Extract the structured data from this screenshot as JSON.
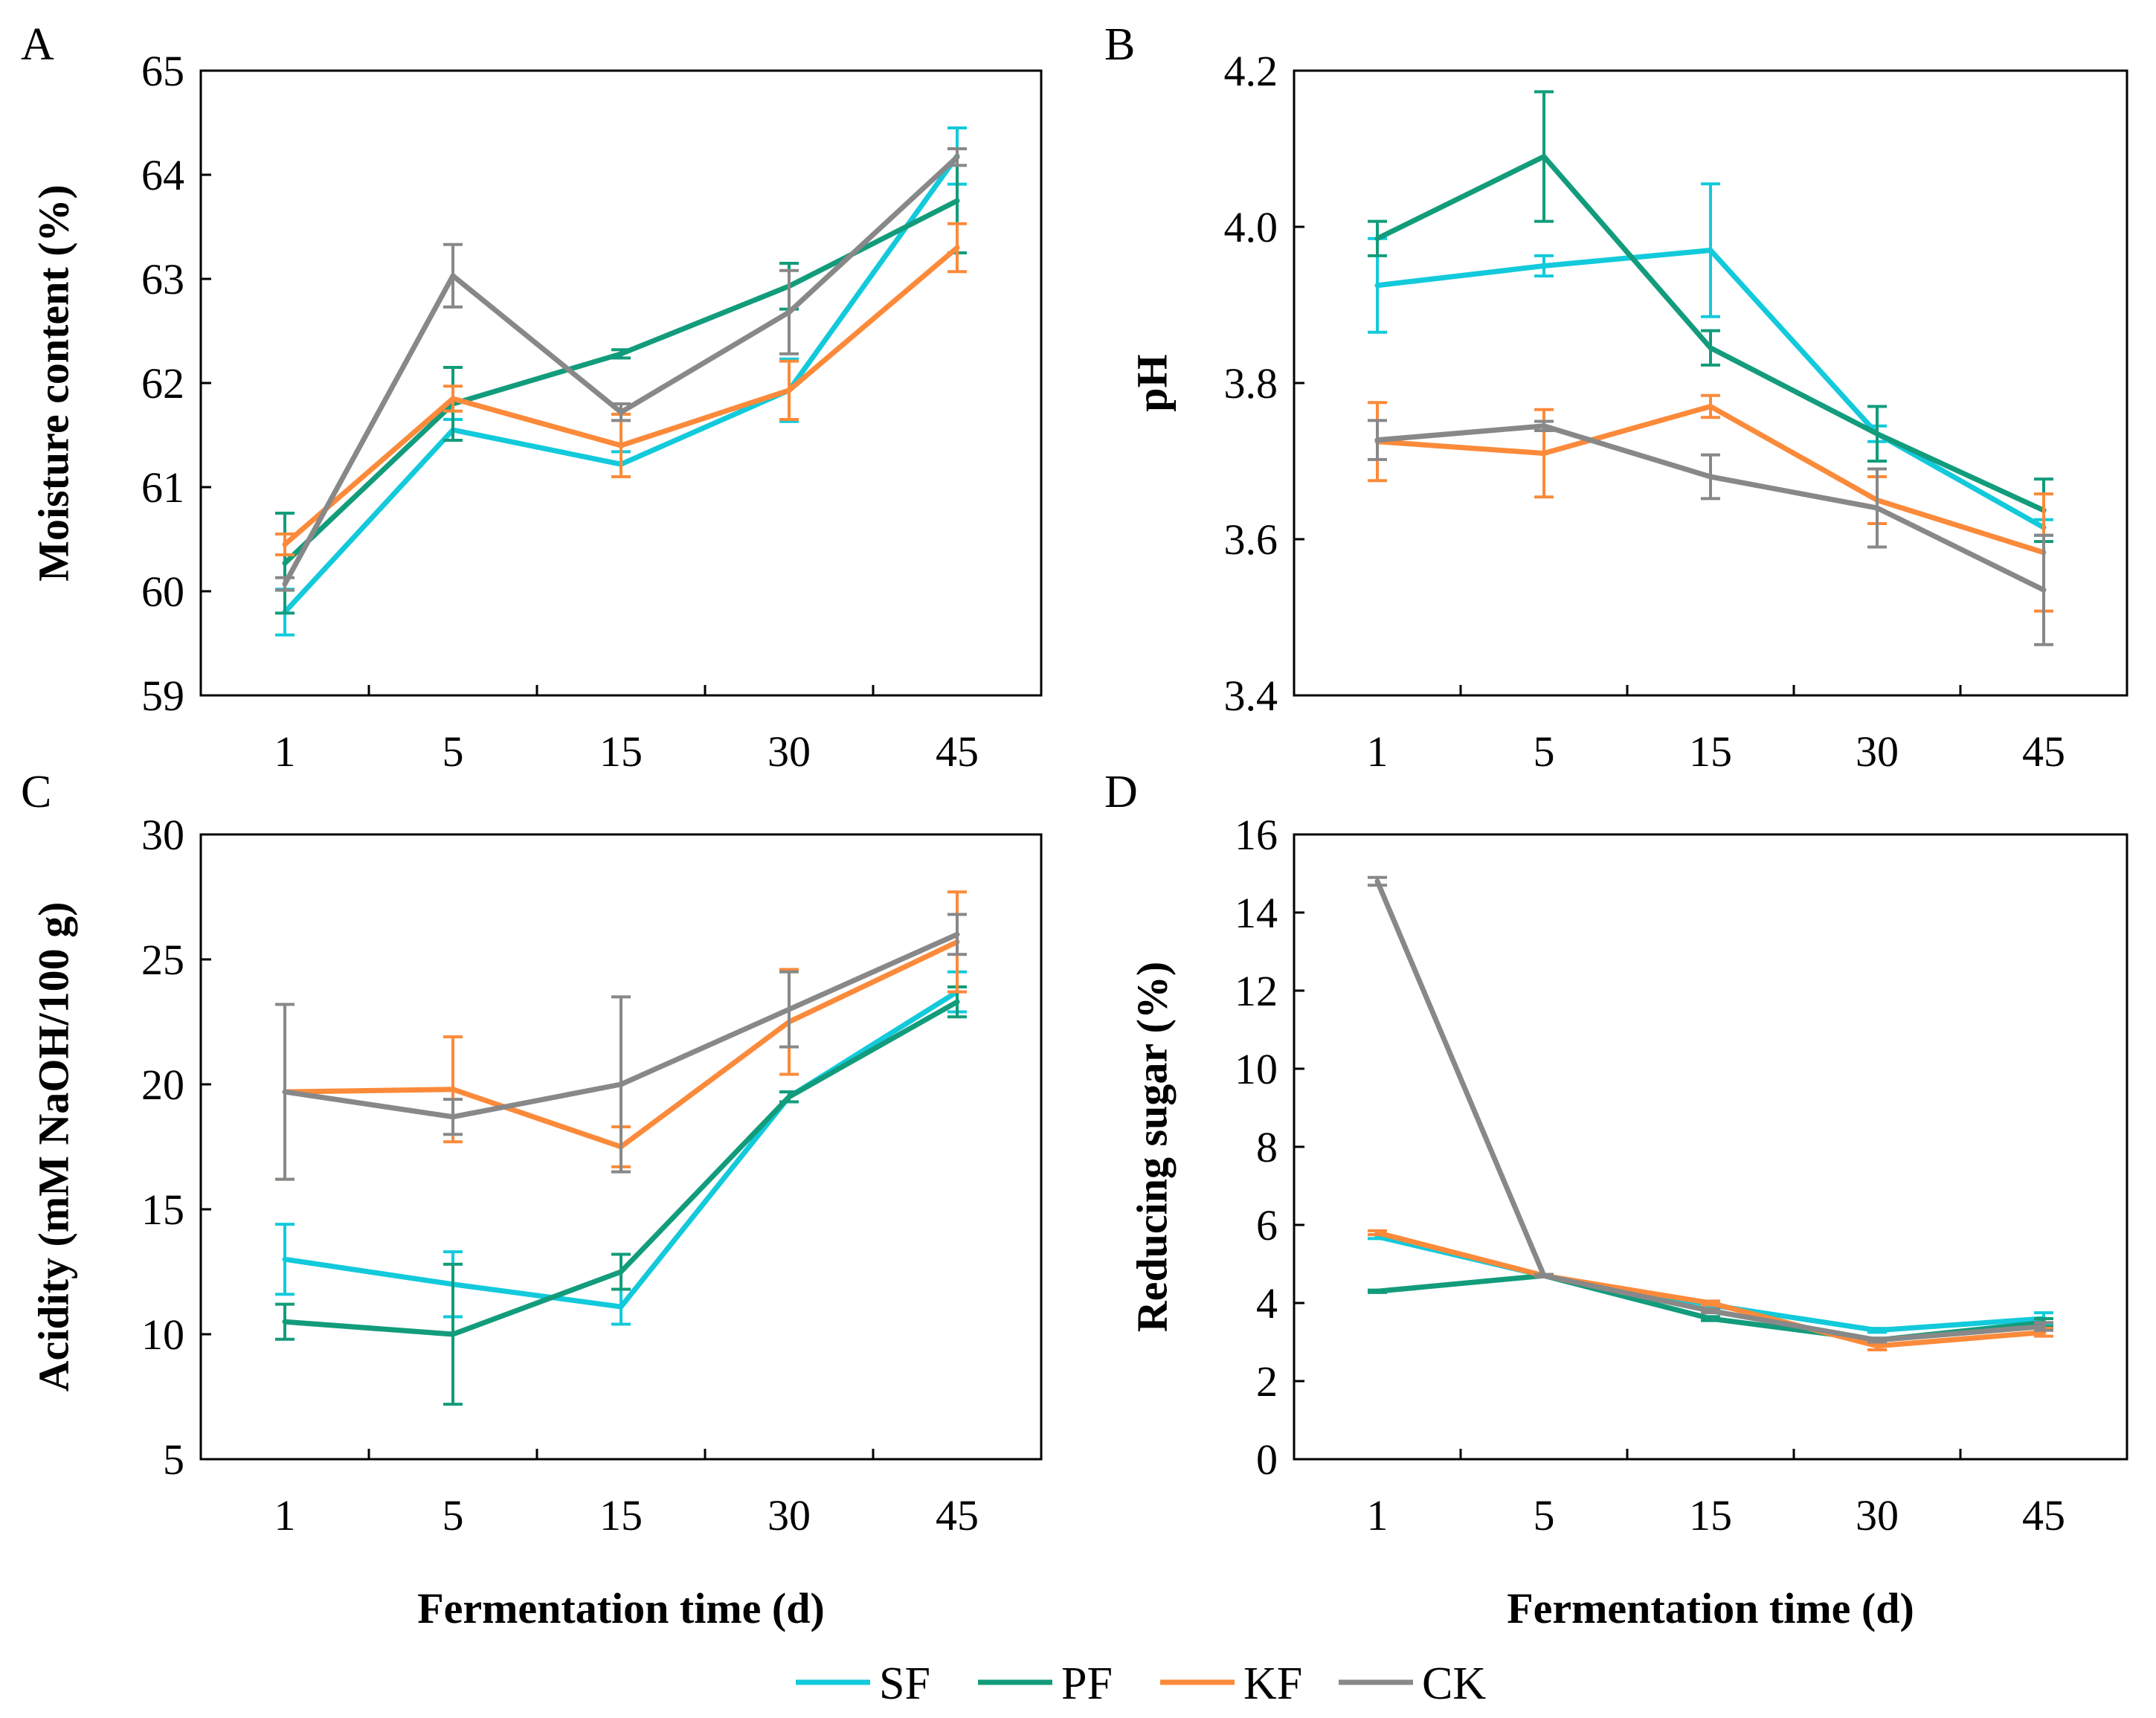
{
  "figure": {
    "x_title": "Fermentation time (d)",
    "series_colors": {
      "SF": "#12CADB",
      "PF": "#129C7B",
      "KF": "#FB8A3A",
      "CK": "#888888"
    }
  },
  "legend": {
    "items": [
      {
        "name": "SF",
        "color": "#12CADB"
      },
      {
        "name": "PF",
        "color": "#129C7B"
      },
      {
        "name": "KF",
        "color": "#FB8A3A"
      },
      {
        "name": "CK",
        "color": "#888888"
      }
    ]
  },
  "chart_data": [
    {
      "panel": "A",
      "type": "line",
      "ylabel": "Moisture content (%)",
      "xlabel": "",
      "categories": [
        "1",
        "5",
        "15",
        "30",
        "45"
      ],
      "ylim": [
        59,
        65
      ],
      "yticks": [
        59,
        60,
        61,
        62,
        63,
        64,
        65
      ],
      "ytick_labels": [
        "59",
        "60",
        "61",
        "62",
        "63",
        "64",
        "65"
      ],
      "series": [
        {
          "name": "SF",
          "values": [
            59.8,
            61.55,
            61.22,
            61.93,
            64.18
          ],
          "errors": [
            0.22,
            0.1,
            0.12,
            0.3,
            0.27
          ]
        },
        {
          "name": "PF",
          "values": [
            60.27,
            61.8,
            62.28,
            62.93,
            63.75
          ],
          "errors": [
            0.48,
            0.35,
            0.04,
            0.22,
            0.5
          ]
        },
        {
          "name": "KF",
          "values": [
            60.45,
            61.85,
            61.4,
            61.93,
            63.3
          ],
          "errors": [
            0.1,
            0.12,
            0.3,
            0.28,
            0.23
          ]
        },
        {
          "name": "CK",
          "values": [
            60.07,
            63.03,
            61.72,
            62.68,
            64.17
          ],
          "errors": [
            0.06,
            0.3,
            0.08,
            0.4,
            0.08
          ]
        }
      ]
    },
    {
      "panel": "B",
      "type": "line",
      "ylabel": "pH",
      "xlabel": "",
      "categories": [
        "1",
        "5",
        "15",
        "30",
        "45"
      ],
      "ylim": [
        3.4,
        4.2
      ],
      "yticks": [
        3.4,
        3.6,
        3.8,
        4.0,
        4.2
      ],
      "ytick_labels": [
        "3.4",
        "3.6",
        "3.8",
        "4.0",
        "4.2"
      ],
      "series": [
        {
          "name": "SF",
          "values": [
            3.925,
            3.95,
            3.97,
            3.735,
            3.615
          ],
          "errors": [
            0.06,
            0.013,
            0.085,
            0.01,
            0.01
          ]
        },
        {
          "name": "PF",
          "values": [
            3.985,
            4.09,
            3.845,
            3.735,
            3.637
          ],
          "errors": [
            0.022,
            0.083,
            0.022,
            0.035,
            0.04
          ]
        },
        {
          "name": "KF",
          "values": [
            3.725,
            3.71,
            3.77,
            3.65,
            3.583
          ],
          "errors": [
            0.05,
            0.056,
            0.014,
            0.03,
            0.075
          ]
        },
        {
          "name": "CK",
          "values": [
            3.727,
            3.745,
            3.68,
            3.64,
            3.535
          ],
          "errors": [
            0.025,
            0.006,
            0.028,
            0.05,
            0.07
          ]
        }
      ]
    },
    {
      "panel": "C",
      "type": "line",
      "ylabel": "Acidity (mM NaOH/100 g)",
      "xlabel": "Fermentation time (d)",
      "categories": [
        "1",
        "5",
        "15",
        "30",
        "45"
      ],
      "ylim": [
        5,
        30
      ],
      "yticks": [
        5,
        10,
        15,
        20,
        25,
        30
      ],
      "ytick_labels": [
        "5",
        "10",
        "15",
        "20",
        "25",
        "30"
      ],
      "series": [
        {
          "name": "SF",
          "values": [
            13.0,
            12.0,
            11.1,
            19.5,
            23.7
          ],
          "errors": [
            1.4,
            1.3,
            0.7,
            0.2,
            0.8
          ]
        },
        {
          "name": "PF",
          "values": [
            10.5,
            10.0,
            12.5,
            19.5,
            23.3
          ],
          "errors": [
            0.7,
            2.8,
            0.7,
            0.2,
            0.6
          ]
        },
        {
          "name": "KF",
          "values": [
            19.7,
            19.8,
            17.5,
            22.5,
            25.7
          ],
          "errors": [
            3.5,
            2.1,
            0.8,
            2.1,
            2.0
          ]
        },
        {
          "name": "CK",
          "values": [
            19.7,
            18.7,
            20.0,
            23.0,
            26.0
          ],
          "errors": [
            3.5,
            0.7,
            3.5,
            1.5,
            0.8
          ]
        }
      ]
    },
    {
      "panel": "D",
      "type": "line",
      "ylabel": "Reducing sugar (%)",
      "xlabel": "Fermentation time (d)",
      "categories": [
        "1",
        "5",
        "15",
        "30",
        "45"
      ],
      "ylim": [
        0,
        16
      ],
      "yticks": [
        0,
        2,
        4,
        6,
        8,
        10,
        12,
        14,
        16
      ],
      "ytick_labels": [
        "0",
        "2",
        "4",
        "6",
        "8",
        "10",
        "12",
        "14",
        "16"
      ],
      "series": [
        {
          "name": "SF",
          "values": [
            5.7,
            4.7,
            3.95,
            3.3,
            3.6
          ],
          "errors": [
            0.05,
            0.03,
            0.05,
            0.05,
            0.15
          ]
        },
        {
          "name": "PF",
          "values": [
            4.3,
            4.7,
            3.6,
            3.05,
            3.5
          ],
          "errors": [
            0.03,
            0.03,
            0.05,
            0.05,
            0.1
          ]
        },
        {
          "name": "KF",
          "values": [
            5.8,
            4.7,
            4.0,
            2.9,
            3.25
          ],
          "errors": [
            0.05,
            0.03,
            0.05,
            0.1,
            0.1
          ]
        },
        {
          "name": "CK",
          "values": [
            14.8,
            4.7,
            3.8,
            3.05,
            3.4
          ],
          "errors": [
            0.1,
            0.03,
            0.05,
            0.05,
            0.1
          ]
        }
      ]
    }
  ]
}
